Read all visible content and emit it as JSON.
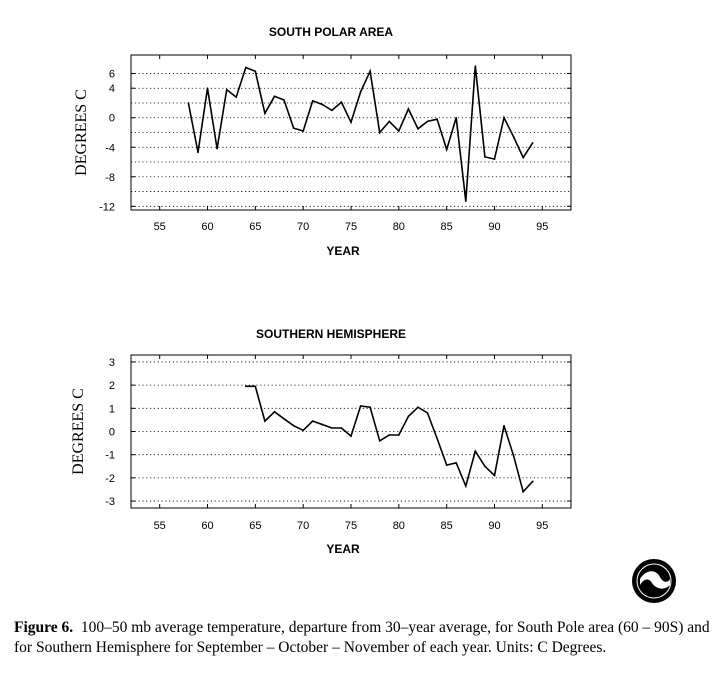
{
  "chart_data": [
    {
      "type": "line",
      "title": "SOUTH POLAR AREA",
      "xlabel": "YEAR",
      "ylabel": "DEGREES C",
      "xlim": [
        52,
        98
      ],
      "ylim": [
        -12.5,
        8.5
      ],
      "xticks": [
        55,
        60,
        65,
        70,
        75,
        80,
        85,
        90,
        95
      ],
      "yticks": [
        6,
        4,
        0,
        -4,
        -8,
        -12
      ],
      "ygrid": [
        6,
        4,
        2,
        0,
        -2,
        -4,
        -6,
        -8,
        -10,
        -12
      ],
      "grid": "dotted horizontal",
      "x": [
        58,
        59,
        60,
        61,
        62,
        63,
        64,
        65,
        66,
        67,
        68,
        69,
        70,
        71,
        72,
        73,
        74,
        75,
        76,
        77,
        78,
        79,
        80,
        81,
        82,
        83,
        84,
        85,
        86,
        87,
        88,
        89,
        90,
        91,
        92,
        93,
        94
      ],
      "values": [
        2.0,
        -4.7,
        4.0,
        -4.2,
        3.8,
        2.8,
        6.8,
        6.3,
        0.6,
        2.9,
        2.4,
        -1.4,
        -1.8,
        2.3,
        1.8,
        1.0,
        2.1,
        -0.6,
        3.5,
        6.3,
        -2.0,
        -0.5,
        -1.8,
        1.2,
        -1.5,
        -0.5,
        -0.2,
        -4.3,
        0.0,
        -11.3,
        7.0,
        -5.3,
        -5.6,
        0.0,
        -2.6,
        -5.4,
        -3.4
      ]
    },
    {
      "type": "line",
      "title": "SOUTHERN HEMISPHERE",
      "xlabel": "YEAR",
      "ylabel": "DEGREES C",
      "xlim": [
        52,
        98
      ],
      "ylim": [
        -3.3,
        3.3
      ],
      "xticks": [
        55,
        60,
        65,
        70,
        75,
        80,
        85,
        90,
        95
      ],
      "yticks": [
        3,
        2,
        1,
        0,
        -1,
        -2,
        -3
      ],
      "ygrid": [
        3,
        2,
        1,
        0,
        -1,
        -2,
        -3
      ],
      "grid": "dotted horizontal",
      "x": [
        64,
        65,
        66,
        67,
        68,
        69,
        70,
        71,
        72,
        73,
        74,
        75,
        76,
        77,
        78,
        79,
        80,
        81,
        82,
        83,
        84,
        85,
        86,
        87,
        88,
        89,
        90,
        91,
        92,
        93,
        94
      ],
      "values": [
        1.95,
        1.95,
        0.45,
        0.85,
        0.55,
        0.25,
        0.05,
        0.45,
        0.3,
        0.15,
        0.15,
        -0.2,
        1.1,
        1.05,
        -0.4,
        -0.15,
        -0.15,
        0.65,
        1.05,
        0.8,
        -0.3,
        -1.45,
        -1.35,
        -2.35,
        -0.85,
        -1.5,
        -1.9,
        0.25,
        -1.05,
        -2.6,
        -2.15
      ]
    }
  ],
  "caption": {
    "label": "Figure 6.",
    "text": "100–50 mb average temperature, departure from 30–year average, for South Pole area (60 – 90S) and for Southern Hemisphere for September – October – November of each year. Units: C Degrees."
  },
  "logo": {
    "icon": "noaa-logo"
  }
}
